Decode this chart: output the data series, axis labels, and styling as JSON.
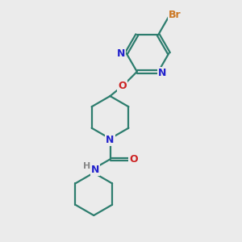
{
  "background_color": "#ebebeb",
  "bond_color": "#2d7d6e",
  "nitrogen_color": "#2222cc",
  "oxygen_color": "#cc2222",
  "bromine_color": "#cc7722",
  "hydrogen_color": "#888888",
  "line_width": 1.6,
  "figsize": [
    3.0,
    3.0
  ],
  "dpi": 100,
  "xlim": [
    0,
    10
  ],
  "ylim": [
    0,
    10
  ]
}
